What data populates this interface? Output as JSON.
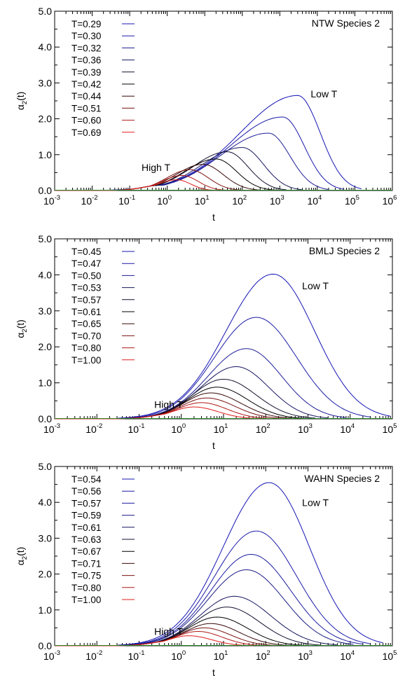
{
  "chart_data": [
    {
      "type": "line",
      "title": "NTW Species 2",
      "xlabel": "t",
      "ylabel_base": "α",
      "ylabel_sub": "2",
      "ylabel_tail": "(t)",
      "xscale": "log",
      "xlim_exp": [
        -3,
        6
      ],
      "xtick_base": "10",
      "xtick_exponents": [
        "-3",
        "-2",
        "-1",
        "0",
        "1",
        "2",
        "3",
        "4",
        "5",
        "6"
      ],
      "ylim": [
        0,
        5
      ],
      "ytick_labels": [
        "0.0",
        "1.0",
        "2.0",
        "3.0",
        "4.0",
        "5.0"
      ],
      "grid": false,
      "legend_position": "top-left",
      "annotations": [
        {
          "text": "Low T",
          "x": 15000,
          "y": 2.6
        },
        {
          "text": "High T",
          "x": 0.5,
          "y": 0.55
        }
      ],
      "series": [
        {
          "name": "T=0.29",
          "color": "#1414b4",
          "peak_t": 3000,
          "peak": 2.65,
          "end_t": 150000
        },
        {
          "name": "T=0.30",
          "color": "#1a1aa8",
          "peak_t": 1200,
          "peak": 2.05,
          "end_t": 50000
        },
        {
          "name": "T=0.32",
          "color": "#1c1c96",
          "peak_t": 500,
          "peak": 1.6,
          "end_t": 20000
        },
        {
          "name": "T=0.36",
          "color": "#161660",
          "peak_t": 100,
          "peak": 1.2,
          "end_t": 4000
        },
        {
          "name": "T=0.39",
          "color": "#101030",
          "peak_t": 40,
          "peak": 1.08,
          "end_t": 1500
        },
        {
          "name": "T=0.42",
          "color": "#000000",
          "peak_t": 20,
          "peak": 0.88,
          "end_t": 700
        },
        {
          "name": "T=0.44",
          "color": "#380808",
          "peak_t": 9,
          "peak": 0.73,
          "end_t": 300
        },
        {
          "name": "T=0.51",
          "color": "#781010",
          "peak_t": 4,
          "peak": 0.58,
          "end_t": 100
        },
        {
          "name": "T=0.60",
          "color": "#b01818",
          "peak_t": 2.5,
          "peak": 0.42,
          "end_t": 40
        },
        {
          "name": "T=0.69",
          "color": "#e01c1c",
          "peak_t": 1.8,
          "peak": 0.3,
          "end_t": 20
        }
      ]
    },
    {
      "type": "line",
      "title": "BMLJ Species 2",
      "xlabel": "t",
      "ylabel_base": "α",
      "ylabel_sub": "2",
      "ylabel_tail": "(t)",
      "xscale": "log",
      "xlim_exp": [
        -3,
        5
      ],
      "xtick_base": "10",
      "xtick_exponents": [
        "-3",
        "-2",
        "-1",
        "0",
        "1",
        "2",
        "3",
        "4",
        "5"
      ],
      "ylim": [
        0,
        5
      ],
      "ytick_labels": [
        "0.0",
        "1.0",
        "2.0",
        "3.0",
        "4.0",
        "5.0"
      ],
      "grid": false,
      "legend_position": "top-left",
      "annotations": [
        {
          "text": "Low T",
          "x": 1500,
          "y": 3.6
        },
        {
          "text": "High T",
          "x": 0.5,
          "y": 0.3
        }
      ],
      "series": [
        {
          "name": "T=0.45",
          "color": "#1414b4",
          "peak_t": 150,
          "peak": 4.02,
          "end_t": 90000
        },
        {
          "name": "T=0.47",
          "color": "#1a1aa8",
          "peak_t": 60,
          "peak": 2.82,
          "end_t": 30000
        },
        {
          "name": "T=0.50",
          "color": "#1c1c96",
          "peak_t": 35,
          "peak": 1.95,
          "end_t": 8000
        },
        {
          "name": "T=0.53",
          "color": "#161660",
          "peak_t": 20,
          "peak": 1.45,
          "end_t": 3000
        },
        {
          "name": "T=0.57",
          "color": "#101030",
          "peak_t": 10,
          "peak": 1.1,
          "end_t": 1500
        },
        {
          "name": "T=0.61",
          "color": "#000000",
          "peak_t": 7,
          "peak": 0.88,
          "end_t": 800
        },
        {
          "name": "T=0.65",
          "color": "#380808",
          "peak_t": 5,
          "peak": 0.72,
          "end_t": 500
        },
        {
          "name": "T=0.70",
          "color": "#781010",
          "peak_t": 4,
          "peak": 0.58,
          "end_t": 300
        },
        {
          "name": "T=0.80",
          "color": "#b01818",
          "peak_t": 3,
          "peak": 0.45,
          "end_t": 150
        },
        {
          "name": "T=1.00",
          "color": "#e01c1c",
          "peak_t": 2,
          "peak": 0.33,
          "end_t": 80
        }
      ]
    },
    {
      "type": "line",
      "title": "WAHN Species 2",
      "xlabel": "t",
      "ylabel_base": "α",
      "ylabel_sub": "2",
      "ylabel_tail": "(t)",
      "xscale": "log",
      "xlim_exp": [
        -3,
        5
      ],
      "xtick_base": "10",
      "xtick_exponents": [
        "-3",
        "-2",
        "-1",
        "0",
        "1",
        "2",
        "3",
        "4",
        "5"
      ],
      "ylim": [
        0,
        5
      ],
      "ytick_labels": [
        "0.0",
        "1.0",
        "2.0",
        "3.0",
        "4.0",
        "5.0"
      ],
      "grid": false,
      "legend_position": "top-left",
      "annotations": [
        {
          "text": "Low T",
          "x": 1500,
          "y": 3.9
        },
        {
          "text": "High T",
          "x": 0.5,
          "y": 0.3
        }
      ],
      "series": [
        {
          "name": "T=0.54",
          "color": "#1414b4",
          "peak_t": 120,
          "peak": 4.55,
          "end_t": 60000
        },
        {
          "name": "T=0.56",
          "color": "#1a1aa8",
          "peak_t": 60,
          "peak": 3.2,
          "end_t": 30000
        },
        {
          "name": "T=0.57",
          "color": "#1c1ca0",
          "peak_t": 45,
          "peak": 2.55,
          "end_t": 20000
        },
        {
          "name": "T=0.59",
          "color": "#1a1a86",
          "peak_t": 35,
          "peak": 2.12,
          "end_t": 12000
        },
        {
          "name": "T=0.61",
          "color": "#161660",
          "peak_t": 18,
          "peak": 1.38,
          "end_t": 5000
        },
        {
          "name": "T=0.63",
          "color": "#101030",
          "peak_t": 12,
          "peak": 1.08,
          "end_t": 2000
        },
        {
          "name": "T=0.67",
          "color": "#000000",
          "peak_t": 7,
          "peak": 0.8,
          "end_t": 800
        },
        {
          "name": "T=0.71",
          "color": "#380808",
          "peak_t": 5,
          "peak": 0.62,
          "end_t": 400
        },
        {
          "name": "T=0.75",
          "color": "#781010",
          "peak_t": 3.5,
          "peak": 0.5,
          "end_t": 200
        },
        {
          "name": "T=0.80",
          "color": "#b01818",
          "peak_t": 2.5,
          "peak": 0.4,
          "end_t": 100
        },
        {
          "name": "T=1.00",
          "color": "#e01c1c",
          "peak_t": 1.5,
          "peak": 0.28,
          "end_t": 50
        }
      ]
    }
  ]
}
